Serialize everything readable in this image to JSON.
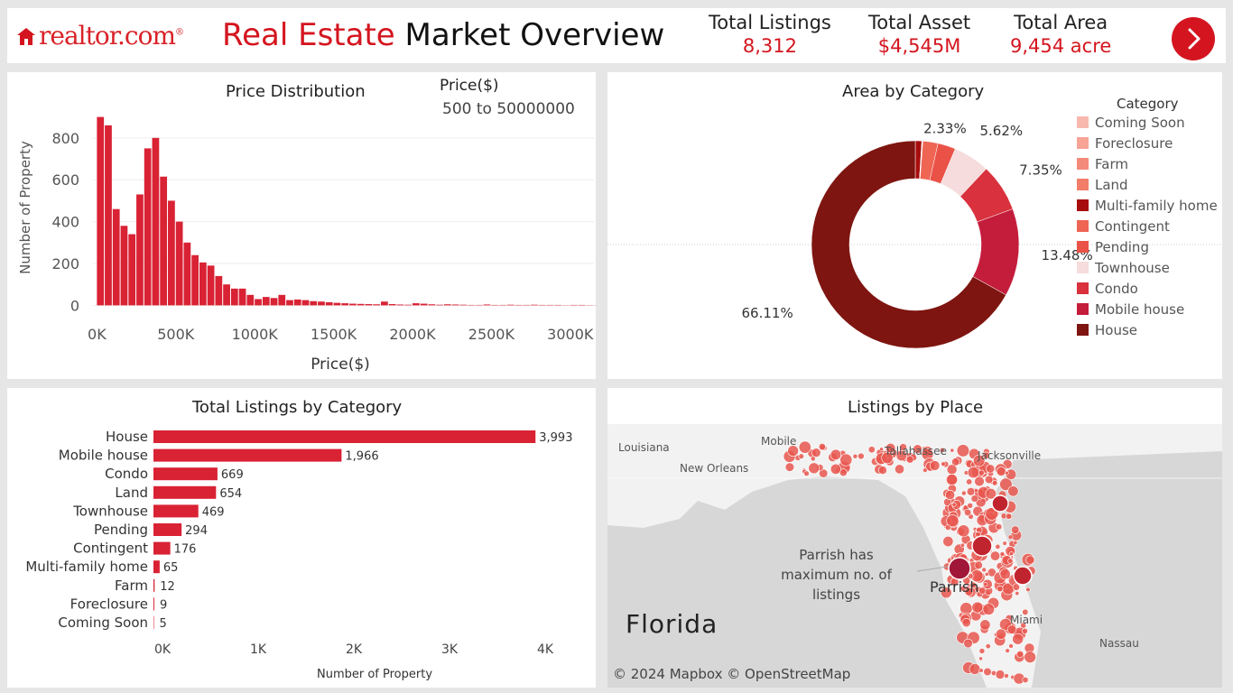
{
  "header": {
    "logo_text": "realtor.com",
    "logo_mark": "®",
    "title_part1": "Real Estate",
    "title_part2": "Market Overview",
    "kpis": [
      {
        "label": "Total Listings",
        "value": "8,312"
      },
      {
        "label": "Total Asset",
        "value": "$4,545M"
      },
      {
        "label": "Total Area",
        "value": "9,454 acre"
      }
    ],
    "nav_icon": "chevron-right-icon"
  },
  "colors": {
    "brand_red": "#d4151f",
    "bar_red": "#d92234",
    "background": "#e6e6e6"
  },
  "price_distribution": {
    "title": "Price Distribution",
    "filter_label": "Price($)",
    "filter_value": "500 to 50000000",
    "chart_data": {
      "type": "bar",
      "title": "Price Distribution",
      "xlabel": "Price($)",
      "ylabel": "Number of Property",
      "bin_width": 50000,
      "x_start": 0,
      "x_ticks": [
        "0K",
        "500K",
        "1000K",
        "1500K",
        "2000K",
        "2500K",
        "3000K"
      ],
      "y_ticks": [
        0,
        200,
        400,
        600,
        800
      ],
      "ylim": [
        -50,
        920
      ],
      "xlim": [
        -25000,
        3150000
      ],
      "values": [
        900,
        860,
        460,
        380,
        340,
        530,
        750,
        800,
        615,
        500,
        400,
        300,
        240,
        205,
        190,
        140,
        100,
        80,
        80,
        50,
        30,
        40,
        35,
        50,
        25,
        28,
        25,
        20,
        18,
        15,
        12,
        10,
        8,
        7,
        6,
        5,
        18,
        6,
        4,
        3,
        10,
        8,
        5,
        3,
        5,
        4,
        3,
        2,
        2,
        4,
        2,
        2,
        3,
        2,
        2,
        3,
        2,
        2,
        2,
        1,
        2,
        2,
        1,
        1,
        1
      ],
      "grid": true
    }
  },
  "area_by_category": {
    "title": "Area by Category",
    "legend_title": "Category",
    "chart_data": {
      "type": "pie",
      "title": "Area by Category",
      "categories": [
        "Coming Soon",
        "Foreclosure",
        "Farm",
        "Land",
        "Multi-family home",
        "Contingent",
        "Pending",
        "Townhouse",
        "Condo",
        "Mobile house",
        "House"
      ],
      "colors": [
        "#f8b8ae",
        "#f7a396",
        "#f48a7a",
        "#f27d68",
        "#a80d0d",
        "#ee6554",
        "#ea5248",
        "#f6dcdc",
        "#d9313d",
        "#c41d3c",
        "#7e1510"
      ],
      "values": [
        0.03,
        0.03,
        0.04,
        0.05,
        1.0,
        2.33,
        2.74,
        5.62,
        7.35,
        13.48,
        66.11
      ],
      "shown_labels": {
        "Contingent": "2.33%",
        "Townhouse": "5.62%",
        "Condo": "7.35%",
        "Mobile house": "13.48%",
        "House": "66.11%"
      },
      "legend": "right"
    }
  },
  "listings_by_category": {
    "title": "Total Listings by Category",
    "chart_data": {
      "type": "bar",
      "orientation": "horizontal",
      "title": "Total Listings by Category",
      "xlabel": "Number of Property",
      "categories": [
        "House",
        "Mobile house",
        "Condo",
        "Land",
        "Townhouse",
        "Pending",
        "Contingent",
        "Multi-family home",
        "Farm",
        "Foreclosure",
        "Coming Soon"
      ],
      "values": [
        3993,
        1966,
        669,
        654,
        469,
        294,
        176,
        65,
        12,
        9,
        5
      ],
      "value_labels": [
        "3,993",
        "1,966",
        "669",
        "654",
        "469",
        "294",
        "176",
        "65",
        "12",
        "9",
        "5"
      ],
      "x_ticks": [
        "0K",
        "1K",
        "2K",
        "3K",
        "4K"
      ],
      "xlim": [
        0,
        4000
      ]
    }
  },
  "listings_by_place": {
    "title": "Listings by Place",
    "annotation": [
      "Parrish has",
      "maximum no. of",
      "listings"
    ],
    "highlight_city": "Parrish",
    "map_labels": [
      "Louisiana",
      "New Orleans",
      "Mobile",
      "Tallahassee",
      "Jacksonville",
      "Miami",
      "Nassau"
    ],
    "brand": "Florida",
    "attribution": "© 2024 Mapbox © OpenStreetMap"
  }
}
